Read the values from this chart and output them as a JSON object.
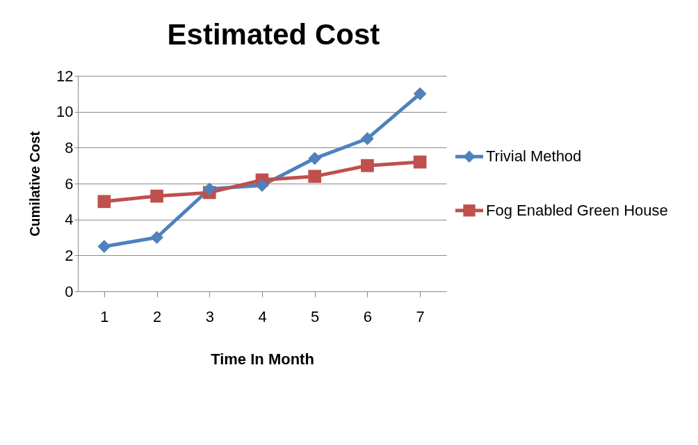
{
  "chart_data": {
    "type": "line",
    "title": "Estimated Cost",
    "xlabel": "Time In Month",
    "ylabel": "Cumilative Cost",
    "categories": [
      "1",
      "2",
      "3",
      "4",
      "5",
      "6",
      "7"
    ],
    "series": [
      {
        "name": "Trivial Method",
        "color": "#4f81bd",
        "marker": "diamond",
        "values": [
          2.5,
          3.0,
          5.7,
          5.9,
          7.4,
          8.5,
          11.0
        ]
      },
      {
        "name": "Fog Enabled Green House",
        "color": "#c0504d",
        "marker": "square",
        "values": [
          5.0,
          5.3,
          5.5,
          6.2,
          6.4,
          7.0,
          7.2
        ]
      }
    ],
    "ylim": [
      0,
      12
    ],
    "yticks": [
      0,
      2,
      4,
      6,
      8,
      10,
      12
    ],
    "grid": "y",
    "legend": "right",
    "line_style": "solid"
  }
}
